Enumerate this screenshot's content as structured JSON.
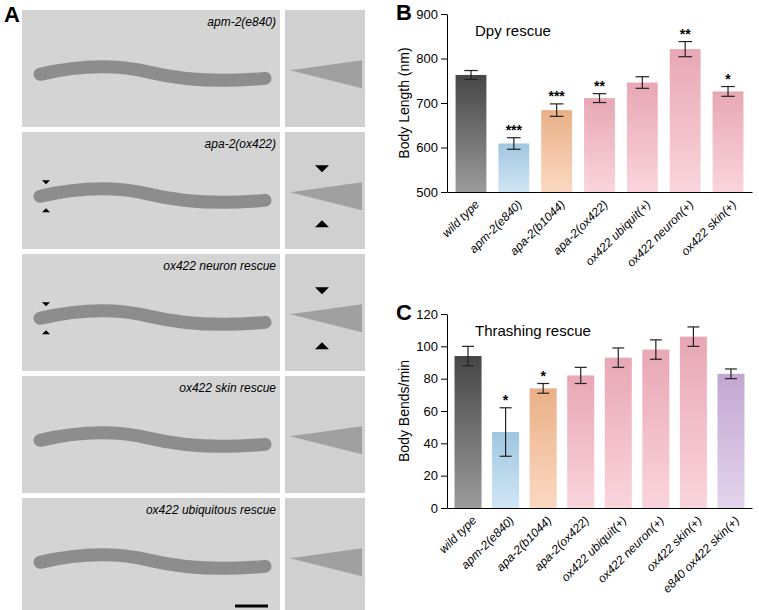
{
  "chart_data": [
    {
      "type": "bar",
      "panel_label": "B",
      "title": "Dpy rescue",
      "y_label": "Body Length (nm)",
      "categories": [
        "wild type",
        "apm-2(e840)",
        "apa-2(b1044)",
        "apa-2(ox422)",
        "ox422 ubiquit(+)",
        "ox422 neuron(+)",
        "ox422 skin(+)"
      ],
      "values": [
        763,
        609,
        684,
        711,
        746,
        821,
        726
      ],
      "errors": [
        10,
        13,
        14,
        10,
        13,
        17,
        11
      ],
      "annotations": [
        null,
        "***",
        "***",
        "**",
        null,
        "**",
        "*"
      ],
      "colors": [
        "#4a4a4a",
        "#a9d1ec",
        "#f7b98e",
        "#f5b0bf",
        "#f5b0bf",
        "#f5b0bf",
        "#f5b0bf"
      ],
      "ylim": [
        500,
        900
      ],
      "yticks": [
        500,
        600,
        700,
        800,
        900
      ],
      "grid": false
    },
    {
      "type": "bar",
      "panel_label": "C",
      "title": "Thrashing rescue",
      "y_label": "Body Bends/min",
      "categories": [
        "wild type",
        "apm-2(e840)",
        "apa-2(b1044)",
        "apa-2(ox422)",
        "ox422 ubiquit(+)",
        "ox422 neuron(+)",
        "ox422 skin(+)",
        "e840 ox422 skin(+)"
      ],
      "values": [
        94,
        47,
        74,
        82,
        93,
        98,
        106,
        83
      ],
      "errors": [
        6,
        15,
        3,
        5,
        6,
        6,
        6,
        3
      ],
      "annotations": [
        null,
        "*",
        "*",
        null,
        null,
        null,
        null,
        null
      ],
      "colors": [
        "#4a4a4a",
        "#a9d1ec",
        "#f7b98e",
        "#f5b0bf",
        "#f5b0bf",
        "#f5b0bf",
        "#f5b0bf",
        "#cdb0dc"
      ],
      "ylim": [
        0,
        120
      ],
      "yticks": [
        0,
        20,
        40,
        60,
        80,
        100,
        120
      ],
      "grid": false
    }
  ],
  "image_panel": {
    "panel_label": "A",
    "images": [
      {
        "label": "apm-2(e840)",
        "arrowheads": false
      },
      {
        "label": "apa-2(ox422)",
        "arrowheads": true
      },
      {
        "label": "ox422 neuron rescue",
        "arrowheads": true
      },
      {
        "label": "ox422 skin rescue",
        "arrowheads": false
      },
      {
        "label": "ox422 ubiquitous rescue",
        "arrowheads": false
      }
    ]
  }
}
